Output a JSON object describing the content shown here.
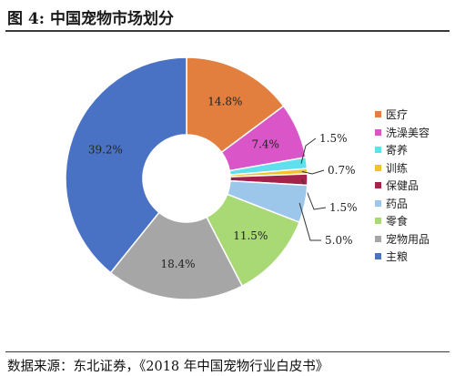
{
  "figure": {
    "title": "图 4:  中国宠物市场划分",
    "source": "数据来源：东北证券，《2018 年中国宠物行业白皮书》"
  },
  "chart_data": {
    "type": "pie",
    "donut": true,
    "title": "",
    "legend_position": "right",
    "series": [
      {
        "name": "医疗",
        "value": 14.8,
        "label": "14.8%",
        "color": "#E27E3E"
      },
      {
        "name": "洗澡美容",
        "value": 7.4,
        "label": "7.4%",
        "color": "#DA56C8"
      },
      {
        "name": "寄养",
        "value": 1.5,
        "label": "1.5%",
        "color": "#5FE0EC"
      },
      {
        "name": "训练",
        "value": 0.7,
        "label": "0.7%",
        "color": "#F4C12C"
      },
      {
        "name": "保健品",
        "value": 1.5,
        "label": "1.5%",
        "color": "#A3234A"
      },
      {
        "name": "药品",
        "value": 5.0,
        "label": "5.0%",
        "color": "#9CC6EA"
      },
      {
        "name": "零食",
        "value": 11.5,
        "label": "11.5%",
        "color": "#A8D974"
      },
      {
        "name": "宠物用品",
        "value": 18.4,
        "label": "18.4%",
        "color": "#A6A6A6"
      },
      {
        "name": "主粮",
        "value": 39.2,
        "label": "39.2%",
        "color": "#4A72C4"
      }
    ]
  }
}
